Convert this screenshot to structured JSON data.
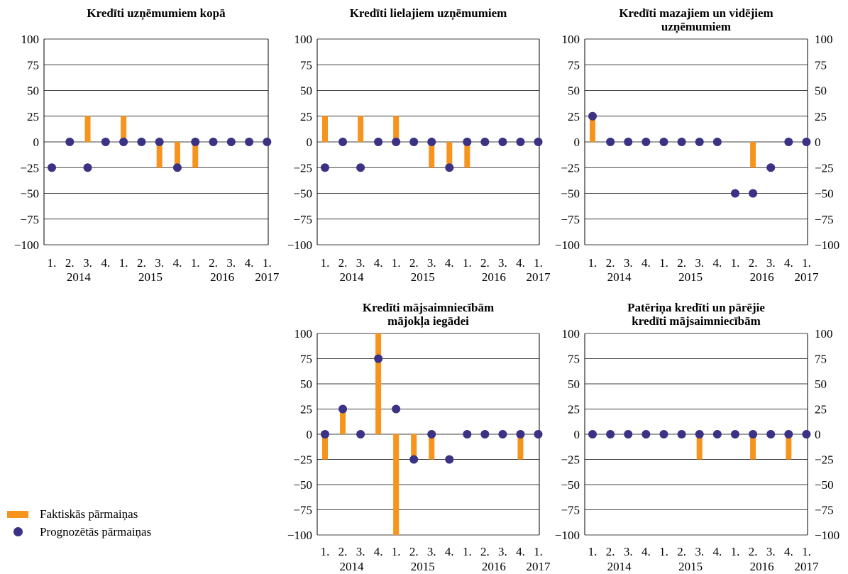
{
  "colors": {
    "actual": "#F7941D",
    "forecast": "#3B3285",
    "grid": "#000000"
  },
  "legend": {
    "actual": "Faktiskās pārmaiņas",
    "forecast": "Prognozētās pārmaiņas"
  },
  "chart_data": [
    {
      "type": "bar",
      "title": [
        "Kredīti uzņēmumiem kopā"
      ],
      "quarters": [
        "1.",
        "2.",
        "3.",
        "4.",
        "1.",
        "2.",
        "3.",
        "4.",
        "1.",
        "2.",
        "3.",
        "4.",
        "1."
      ],
      "years": [
        "2014",
        "2015",
        "2016",
        "2017"
      ],
      "ylim": [
        -100,
        100
      ],
      "yticks": [
        "100",
        "75",
        "50",
        "25",
        "0",
        "−25",
        "−50",
        "−75",
        "−100"
      ],
      "series": [
        {
          "name": "Faktiskās pārmaiņas",
          "values": [
            0,
            0,
            25,
            0,
            25,
            0,
            -25,
            -25,
            -25,
            0,
            0,
            0,
            0
          ]
        },
        {
          "name": "Prognozētās pārmaiņas",
          "values": [
            -25,
            0,
            -25,
            0,
            0,
            0,
            0,
            -25,
            0,
            0,
            0,
            0,
            0
          ]
        }
      ]
    },
    {
      "type": "bar",
      "title": [
        "Kredīti lielajiem uzņēmumiem"
      ],
      "quarters": [
        "1.",
        "2.",
        "3.",
        "4.",
        "1.",
        "2.",
        "3.",
        "4.",
        "1.",
        "2.",
        "3.",
        "4.",
        "1."
      ],
      "years": [
        "2014",
        "2015",
        "2016",
        "2017"
      ],
      "ylim": [
        -100,
        100
      ],
      "yticks": [
        "100",
        "75",
        "50",
        "25",
        "0",
        "−25",
        "−50",
        "−75",
        "−100"
      ],
      "series": [
        {
          "name": "Faktiskās pārmaiņas",
          "values": [
            25,
            0,
            25,
            0,
            25,
            0,
            -25,
            -25,
            -25,
            0,
            0,
            0,
            0
          ]
        },
        {
          "name": "Prognozētās pārmaiņas",
          "values": [
            -25,
            0,
            -25,
            0,
            0,
            0,
            0,
            -25,
            0,
            0,
            0,
            0,
            0
          ]
        }
      ]
    },
    {
      "type": "bar",
      "title": [
        "Kredīti mazajiem un vidējiem",
        "uzņēmumiem"
      ],
      "quarters": [
        "1.",
        "2.",
        "3.",
        "4.",
        "1.",
        "2.",
        "3.",
        "4.",
        "1.",
        "2.",
        "3.",
        "4.",
        "1."
      ],
      "years": [
        "2014",
        "2015",
        "2016",
        "2017"
      ],
      "ylim": [
        -100,
        100
      ],
      "yticks": [
        "100",
        "75",
        "50",
        "25",
        "0",
        "−25",
        "−50",
        "−75",
        "−100"
      ],
      "series": [
        {
          "name": "Faktiskās pārmaiņas",
          "values": [
            25,
            0,
            0,
            0,
            0,
            0,
            0,
            0,
            0,
            -25,
            0,
            0,
            0
          ]
        },
        {
          "name": "Prognozētās pārmaiņas",
          "values": [
            25,
            0,
            0,
            0,
            0,
            0,
            0,
            0,
            -50,
            -50,
            -25,
            0,
            0
          ]
        }
      ]
    },
    {
      "type": "bar",
      "title": [
        "Kredīti mājsaimniecībām",
        "mājokļa iegādei"
      ],
      "quarters": [
        "1.",
        "2.",
        "3.",
        "4.",
        "1.",
        "2.",
        "3.",
        "4.",
        "1.",
        "2.",
        "3.",
        "4.",
        "1."
      ],
      "years": [
        "2014",
        "2015",
        "2016",
        "2017"
      ],
      "ylim": [
        -100,
        100
      ],
      "yticks": [
        "100",
        "75",
        "50",
        "25",
        "0",
        "−25",
        "−50",
        "−75",
        "−100"
      ],
      "series": [
        {
          "name": "Faktiskās pārmaiņas",
          "values": [
            -25,
            25,
            0,
            100,
            -100,
            -25,
            -25,
            0,
            0,
            0,
            0,
            -25,
            0
          ]
        },
        {
          "name": "Prognozētās pārmaiņas",
          "values": [
            0,
            25,
            0,
            75,
            25,
            -25,
            0,
            -25,
            0,
            0,
            0,
            0,
            0
          ]
        }
      ]
    },
    {
      "type": "bar",
      "title": [
        "Patēriņa kredīti un pārējie",
        "kredīti mājsaimniecībām"
      ],
      "quarters": [
        "1.",
        "2.",
        "3.",
        "4.",
        "1.",
        "2.",
        "3.",
        "4.",
        "1.",
        "2.",
        "3.",
        "4.",
        "1."
      ],
      "years": [
        "2014",
        "2015",
        "2016",
        "2017"
      ],
      "ylim": [
        -100,
        100
      ],
      "yticks": [
        "100",
        "75",
        "50",
        "25",
        "0",
        "−25",
        "−50",
        "−75",
        "−100"
      ],
      "series": [
        {
          "name": "Faktiskās pārmaiņas",
          "values": [
            0,
            0,
            0,
            0,
            0,
            0,
            -25,
            0,
            0,
            -25,
            0,
            -25,
            0
          ]
        },
        {
          "name": "Prognozētās pārmaiņas",
          "values": [
            0,
            0,
            0,
            0,
            0,
            0,
            0,
            0,
            0,
            0,
            0,
            0,
            0
          ]
        }
      ]
    }
  ]
}
